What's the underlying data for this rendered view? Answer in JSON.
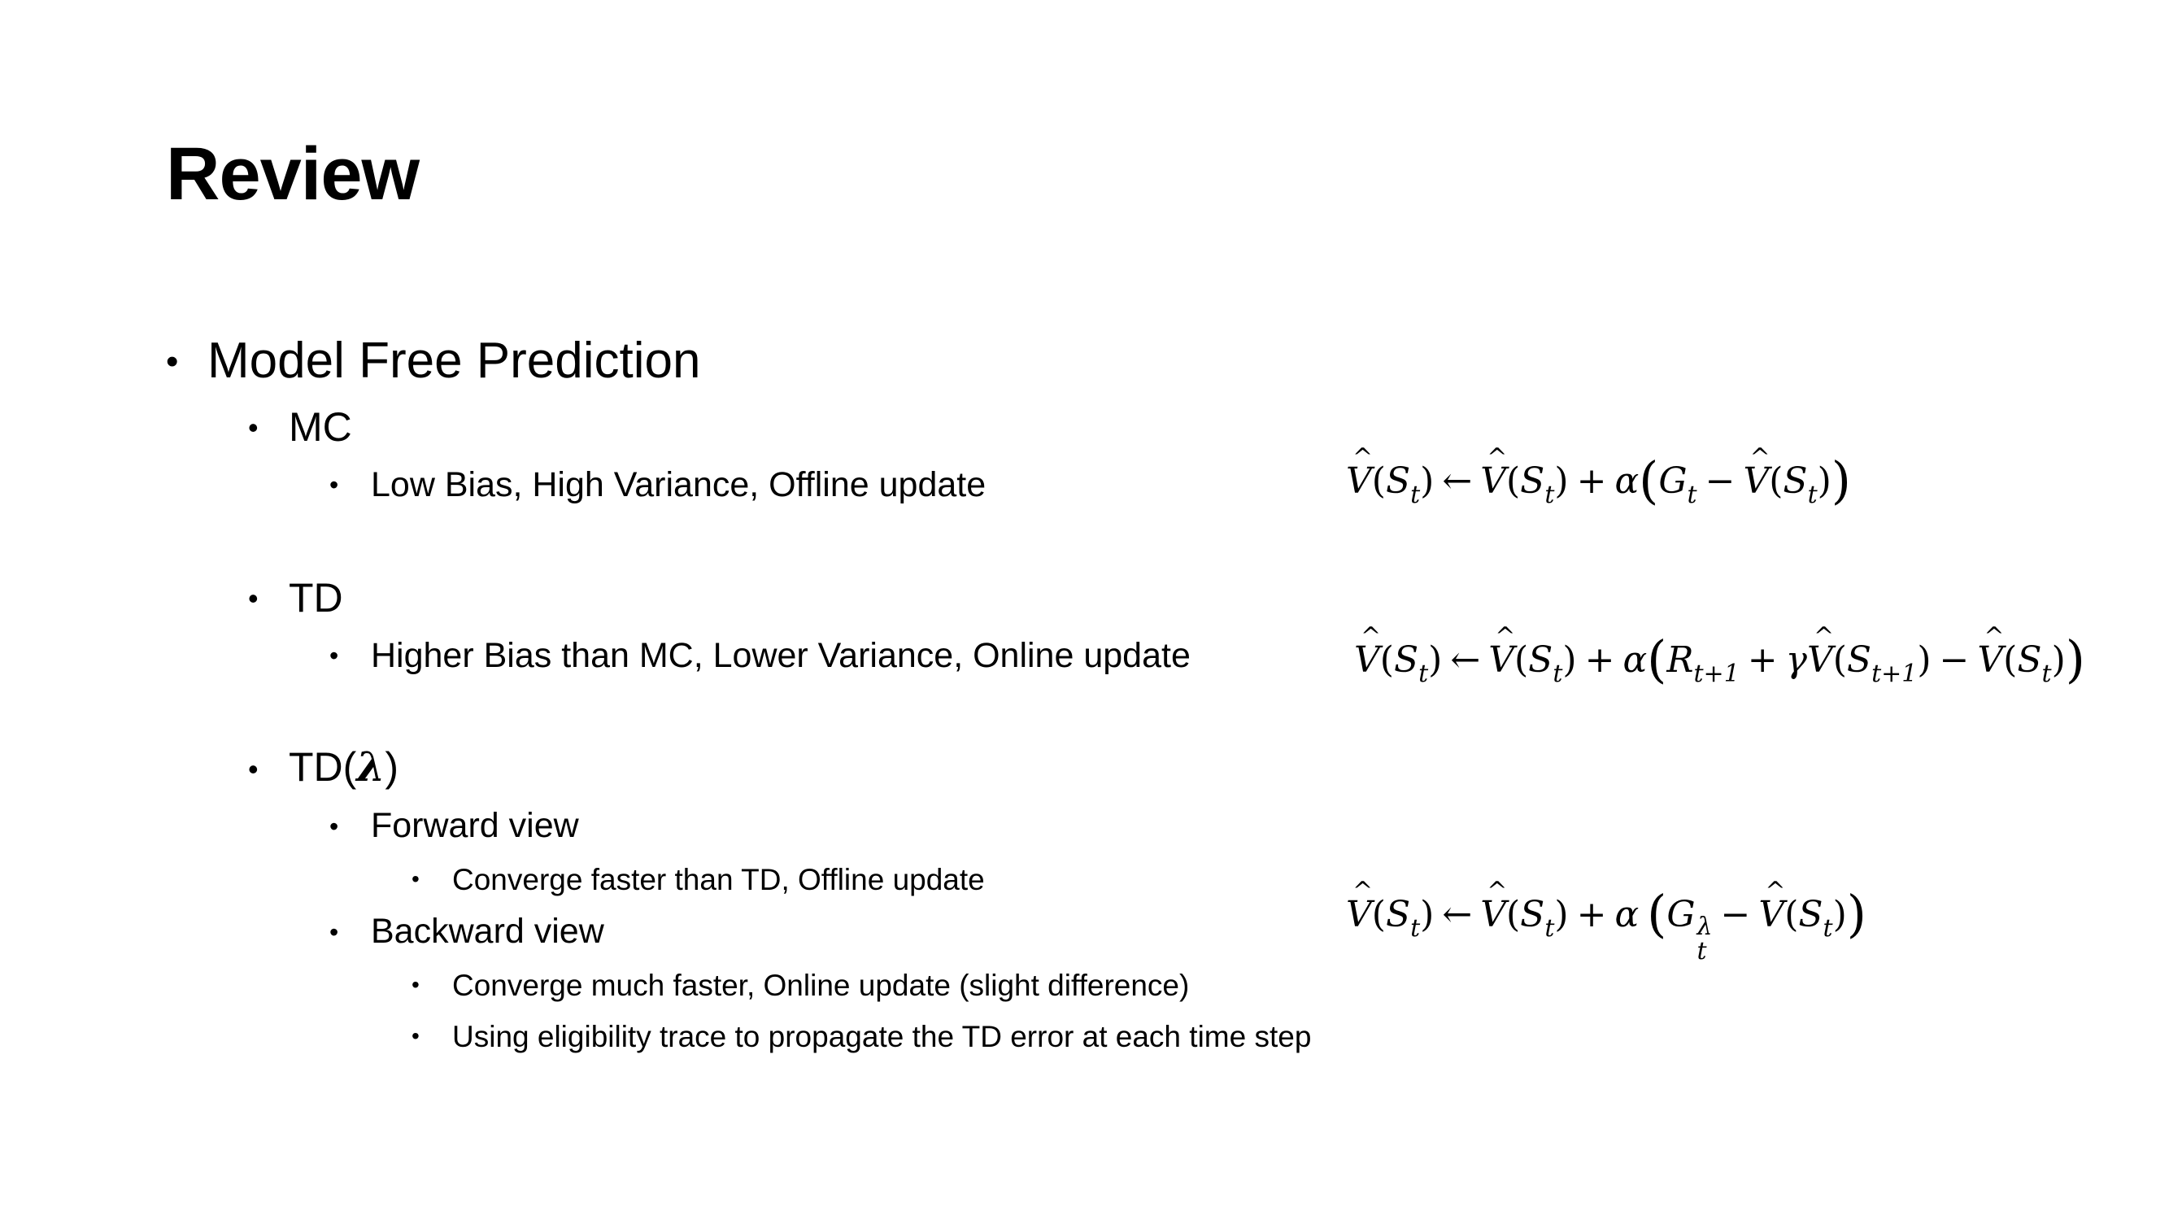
{
  "slide": {
    "title": "Review",
    "bullet_char": "•",
    "items": {
      "model_free": "Model Free Prediction",
      "mc": {
        "label": "MC",
        "desc": "Low Bias, High Variance, Offline update"
      },
      "td": {
        "label": "TD",
        "desc": "Higher Bias than MC, Lower Variance, Online update"
      },
      "td_lambda": {
        "label_prefix": "TD(",
        "lambda": "λ",
        "label_suffix": ")",
        "forward": {
          "label": "Forward view",
          "desc": "Converge faster than TD, Offline update"
        },
        "backward": {
          "label": "Backward view",
          "desc1": "Converge much faster, Online update (slight difference)",
          "desc2": "Using eligibility trace to propagate the TD error at each time step"
        }
      }
    },
    "equations": {
      "mc": "V̂(S_t) ← V̂(S_t) + α(G_t − V̂(S_t))",
      "td": "V̂(S_t) ← V̂(S_t) + α(R_{t+1} + γV̂(S_{t+1}) − V̂(S_t))",
      "td_lambda": "V̂(S_t) ← V̂(S_t) + α (G_t^λ − V̂(S_t))"
    }
  }
}
